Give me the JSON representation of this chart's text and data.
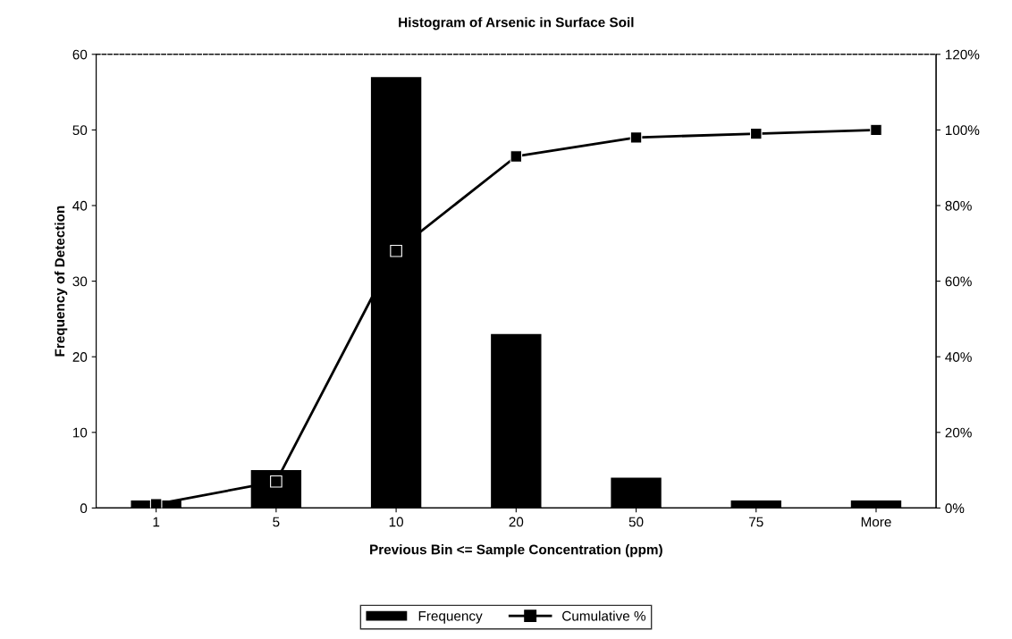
{
  "chart_data": {
    "type": "bar",
    "title": "Histogram of Arsenic in Surface Soil",
    "xlabel": "Previous Bin <= Sample Concentration (ppm)",
    "ylabel": "Frequency of Detection",
    "categories": [
      "1",
      "5",
      "10",
      "20",
      "50",
      "75",
      "More"
    ],
    "series": [
      {
        "name": "Frequency",
        "color": "#000000",
        "values": [
          1,
          5,
          57,
          23,
          4,
          1,
          1
        ]
      },
      {
        "name": "Cumulative %",
        "type": "line",
        "axis": "y2",
        "color": "#000000",
        "marker": "square",
        "values": [
          1,
          7,
          68,
          93,
          98,
          99,
          100
        ]
      }
    ],
    "ylim": [
      0,
      60
    ],
    "yticks": [
      0,
      10,
      20,
      30,
      40,
      50,
      60
    ],
    "y2lim": [
      0,
      120
    ],
    "y2ticks": [
      {
        "value": 0,
        "label": "0%"
      },
      {
        "value": 20,
        "label": "20%"
      },
      {
        "value": 40,
        "label": "40%"
      },
      {
        "value": 60,
        "label": "60%"
      },
      {
        "value": 80,
        "label": "80%"
      },
      {
        "value": 100,
        "label": "100%"
      },
      {
        "value": 120,
        "label": "120%"
      }
    ],
    "legend": "bottom",
    "line_style": "solid"
  }
}
